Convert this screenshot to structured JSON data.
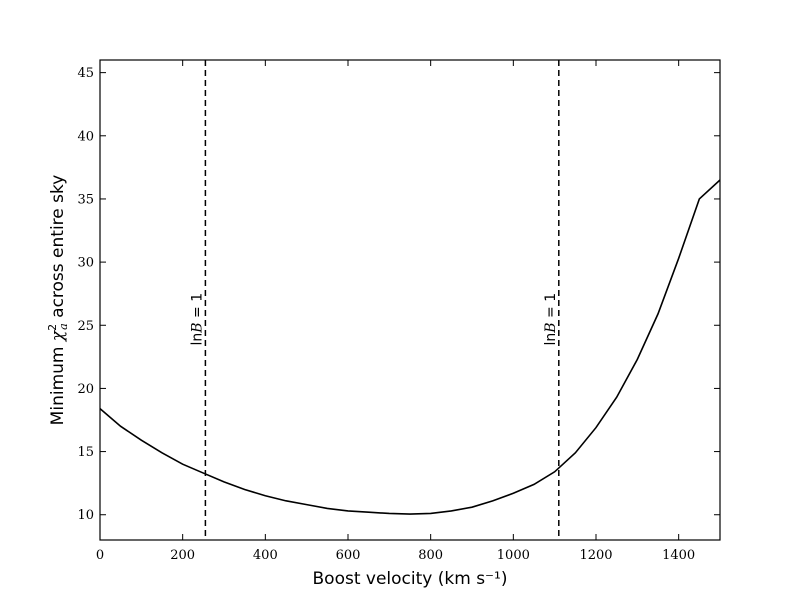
{
  "chart_data": {
    "type": "line",
    "title": "",
    "xlabel": "Boost velocity (km s⁻¹)",
    "ylabel_prefix": "Minimum ",
    "ylabel_symbol": "χ",
    "ylabel_sup": "2",
    "ylabel_sub": "a",
    "ylabel_suffix": " across entire sky",
    "xlim": [
      0,
      1500
    ],
    "ylim": [
      8,
      46
    ],
    "xticks": [
      0,
      200,
      400,
      600,
      800,
      1000,
      1200,
      1400
    ],
    "yticks": [
      10,
      15,
      20,
      25,
      30,
      35,
      40,
      45
    ],
    "grid": false,
    "series": [
      {
        "x": [
          0,
          50,
          100,
          150,
          200,
          250,
          300,
          350,
          400,
          450,
          500,
          550,
          600,
          650,
          700,
          750,
          800,
          850,
          900,
          950,
          1000,
          1050,
          1100,
          1150,
          1200,
          1250,
          1300,
          1350,
          1400,
          1450,
          1500
        ],
        "y": [
          18.4,
          17.0,
          15.9,
          14.9,
          14.0,
          13.3,
          12.6,
          12.0,
          11.5,
          11.1,
          10.8,
          10.5,
          10.3,
          10.2,
          10.1,
          10.05,
          10.1,
          10.3,
          10.6,
          11.1,
          11.7,
          12.4,
          13.4,
          14.9,
          16.9,
          19.3,
          22.3,
          25.9,
          30.3,
          35.0,
          36.5
        ]
      }
    ],
    "vlines": [
      {
        "x": 255,
        "label_prefix": "ln",
        "label_var": "B",
        "label_suffix": " = 1",
        "style": "dashed"
      },
      {
        "x": 1110,
        "label_prefix": "ln",
        "label_var": "B",
        "label_suffix": " = 1",
        "style": "dashed"
      }
    ],
    "colors": {
      "line": "#000000",
      "axes": "#000000",
      "background": "#ffffff"
    }
  }
}
